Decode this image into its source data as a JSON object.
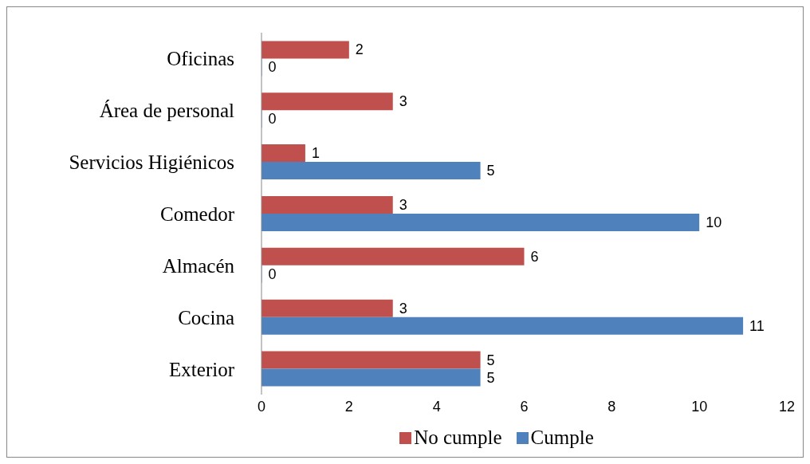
{
  "chart_data": {
    "type": "bar",
    "orientation": "horizontal",
    "categories": [
      "Oficinas",
      "Área de personal",
      "Servicios Higiénicos",
      "Comedor",
      "Almacén",
      "Cocina",
      "Exterior"
    ],
    "series": [
      {
        "name": "No cumple",
        "color": "#c0504d",
        "values": [
          2,
          3,
          1,
          3,
          6,
          3,
          5
        ]
      },
      {
        "name": "Cumple",
        "color": "#4f81bd",
        "values": [
          0,
          0,
          5,
          10,
          0,
          11,
          5
        ]
      }
    ],
    "xlim": [
      0,
      12
    ],
    "xticks": [
      0,
      2,
      4,
      6,
      8,
      10,
      12
    ],
    "grid": false,
    "legend": "bottom",
    "data_labels": true
  }
}
